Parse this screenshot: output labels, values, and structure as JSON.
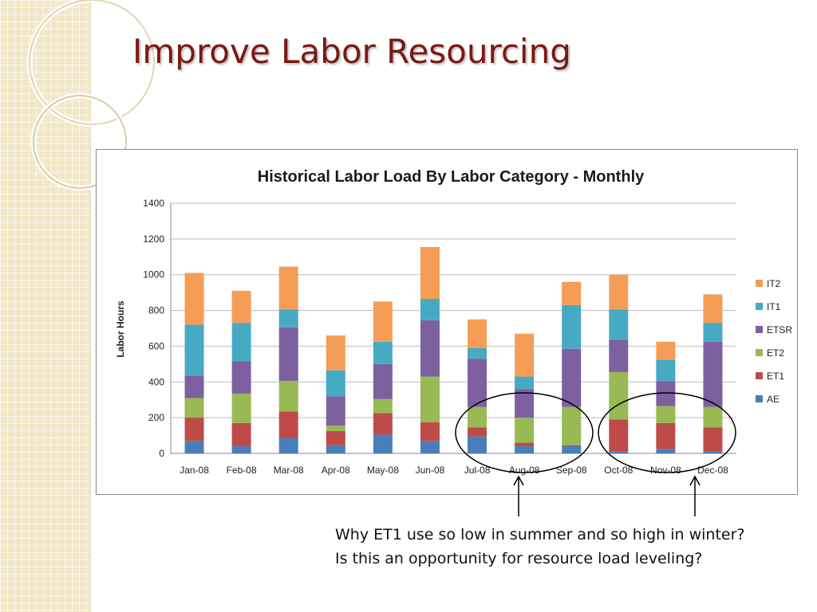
{
  "slide": {
    "title": "Improve Labor Resourcing",
    "annotation_lines": [
      "Why ET1 use so low in summer and so high in winter?",
      "Is this an opportunity for resource load leveling?"
    ]
  },
  "chart_data": {
    "type": "bar",
    "stacked": true,
    "title": "Historical Labor Load By Labor Category - Monthly",
    "xlabel": "",
    "ylabel": "Labor Hours",
    "ylim": [
      0,
      1400
    ],
    "yticks": [
      0,
      200,
      400,
      600,
      800,
      1000,
      1200,
      1400
    ],
    "grid": true,
    "legend_position": "right",
    "categories": [
      "Jan-08",
      "Feb-08",
      "Mar-08",
      "Apr-08",
      "May-08",
      "Jun-08",
      "Jul-08",
      "Aug-08",
      "Sep-08",
      "Oct-08",
      "Nov-08",
      "Dec-08"
    ],
    "series": [
      {
        "name": "AE",
        "color": "#4a7ebb",
        "values": [
          70,
          40,
          85,
          45,
          105,
          70,
          95,
          40,
          40,
          10,
          25,
          10
        ]
      },
      {
        "name": "ET1",
        "color": "#be4b48",
        "values": [
          130,
          130,
          150,
          80,
          120,
          105,
          50,
          20,
          5,
          180,
          145,
          135
        ]
      },
      {
        "name": "ET2",
        "color": "#98b954",
        "values": [
          110,
          165,
          170,
          30,
          80,
          255,
          115,
          140,
          215,
          265,
          95,
          115
        ]
      },
      {
        "name": "ETSR",
        "color": "#7d60a0",
        "values": [
          125,
          180,
          300,
          165,
          195,
          315,
          270,
          160,
          325,
          180,
          140,
          365
        ]
      },
      {
        "name": "IT1",
        "color": "#46aac5",
        "values": [
          285,
          215,
          100,
          145,
          125,
          120,
          60,
          70,
          245,
          170,
          120,
          105
        ]
      },
      {
        "name": "IT2",
        "color": "#f59d56",
        "values": [
          290,
          180,
          240,
          195,
          225,
          290,
          160,
          240,
          130,
          195,
          100,
          160
        ]
      }
    ]
  }
}
